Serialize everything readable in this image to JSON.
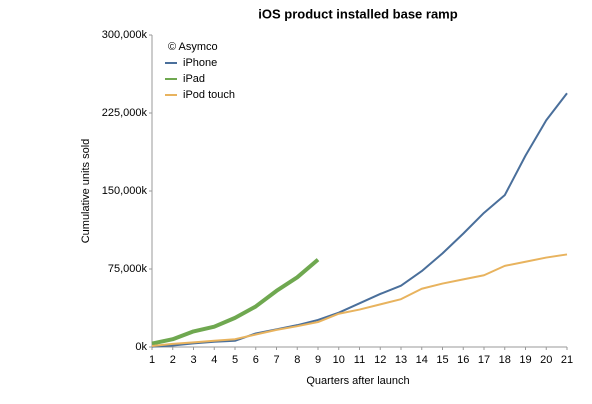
{
  "chart_data": {
    "type": "line",
    "title": "iOS product installed base ramp",
    "annotation": "© Asymco",
    "x_label": "Quarters after launch",
    "y_label": "Cumulative units sold",
    "x": [
      1,
      2,
      3,
      4,
      5,
      6,
      7,
      8,
      9,
      10,
      11,
      12,
      13,
      14,
      15,
      16,
      17,
      18,
      19,
      20,
      21
    ],
    "series": [
      {
        "name": "iPhone",
        "color": "#4a6f9b",
        "width": 2,
        "values": [
          300,
          1400,
          3500,
          5000,
          6000,
          13000,
          17000,
          21000,
          26000,
          33000,
          42000,
          51000,
          59000,
          73000,
          90000,
          109000,
          129000,
          146000,
          184000,
          218000,
          244000
        ]
      },
      {
        "name": "iPad",
        "color": "#6fa850",
        "width": 4,
        "values": [
          3300,
          7500,
          15000,
          19500,
          28000,
          39000,
          54000,
          67000,
          84000,
          null,
          null,
          null,
          null,
          null,
          null,
          null,
          null,
          null,
          null,
          null,
          null
        ]
      },
      {
        "name": "iPod touch",
        "color": "#e8b35e",
        "width": 2,
        "values": [
          1000,
          3000,
          4500,
          6000,
          7500,
          12000,
          16500,
          20000,
          24000,
          32000,
          36000,
          41000,
          46000,
          56000,
          61000,
          65000,
          69000,
          78000,
          82000,
          86000,
          89000
        ]
      }
    ],
    "xlim": [
      1,
      21
    ],
    "xticks": [
      1,
      2,
      3,
      4,
      5,
      6,
      7,
      8,
      9,
      10,
      11,
      12,
      13,
      14,
      15,
      16,
      17,
      18,
      19,
      20,
      21
    ],
    "ylim": [
      0,
      300000
    ],
    "yticks": [
      {
        "value": 0,
        "label": "0k"
      },
      {
        "value": 75000,
        "label": "75,000k"
      },
      {
        "value": 150000,
        "label": "150,000k"
      },
      {
        "value": 225000,
        "label": "225,000k"
      },
      {
        "value": 300000,
        "label": "300,000k"
      }
    ],
    "grid": false,
    "legend": "top-left"
  }
}
